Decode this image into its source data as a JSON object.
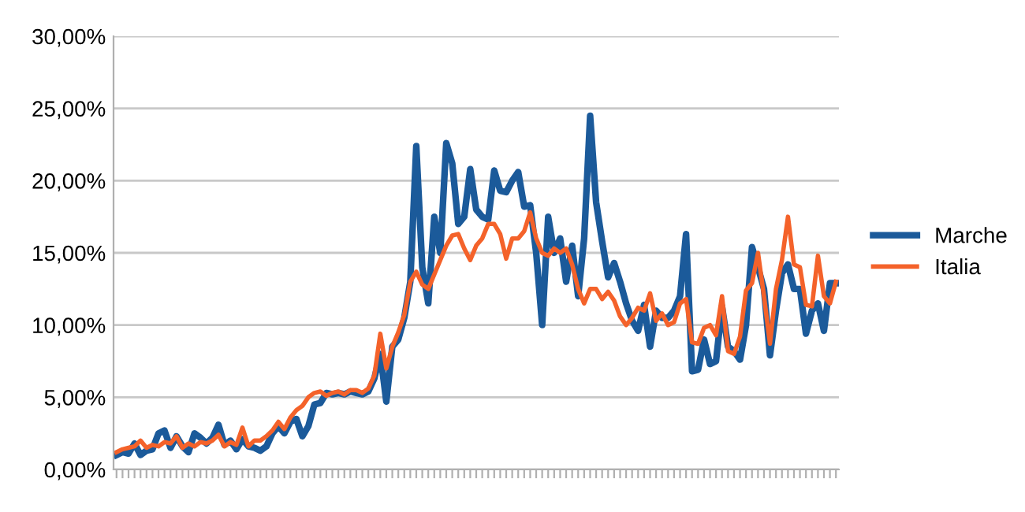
{
  "chart_data": {
    "type": "line",
    "categories": [
      null,
      null,
      null,
      null,
      null,
      null,
      null,
      null,
      null,
      null,
      null,
      null,
      null,
      null,
      null,
      null,
      null,
      null,
      null,
      null,
      null,
      null,
      null,
      null,
      null,
      null,
      null,
      null,
      null,
      null,
      null,
      null,
      null,
      null,
      null,
      null,
      null,
      null,
      null,
      null,
      null,
      null,
      null,
      null,
      null,
      null,
      null,
      null,
      null,
      null,
      null,
      null,
      null,
      null,
      null,
      null,
      null,
      null,
      null,
      null,
      null,
      null,
      null,
      null,
      null,
      null,
      null,
      null,
      null,
      null,
      null,
      null,
      null,
      null,
      null,
      null,
      null,
      null,
      null,
      null,
      null,
      null,
      null,
      null,
      null,
      null,
      null,
      null,
      null,
      null,
      null,
      null,
      null,
      null,
      null,
      null,
      null,
      null,
      null,
      null,
      null,
      null,
      null,
      null,
      null,
      null,
      null,
      null,
      null,
      null,
      null,
      null,
      null,
      null,
      null,
      null,
      null,
      null,
      null,
      null,
      null
    ],
    "series": [
      {
        "name": "Marche",
        "color": "#1b5a9a",
        "values": [
          1.0,
          1.2,
          1.1,
          1.8,
          1.0,
          1.3,
          1.4,
          2.5,
          2.7,
          1.5,
          2.3,
          1.6,
          1.2,
          2.5,
          2.2,
          1.8,
          2.2,
          3.1,
          1.7,
          2.0,
          1.4,
          2.1,
          1.6,
          1.5,
          1.3,
          1.6,
          2.5,
          3.0,
          2.5,
          3.3,
          3.5,
          2.3,
          3.0,
          4.5,
          4.6,
          5.3,
          5.2,
          5.3,
          5.2,
          5.4,
          5.3,
          5.2,
          5.4,
          6.3,
          8.0,
          4.7,
          8.5,
          9.0,
          10.5,
          13.0,
          22.4,
          14.0,
          11.5,
          17.5,
          15.0,
          22.6,
          21.2,
          17.0,
          17.5,
          20.8,
          18.0,
          17.5,
          17.3,
          20.7,
          19.3,
          19.2,
          20.0,
          20.6,
          18.2,
          18.3,
          15.0,
          10.0,
          17.5,
          15.0,
          16.0,
          13.0,
          15.5,
          12.0,
          16.0,
          24.5,
          18.5,
          15.8,
          13.3,
          14.3,
          13.0,
          11.5,
          10.3,
          9.6,
          11.4,
          8.5,
          11.0,
          10.5,
          10.5,
          11.0,
          12.0,
          16.3,
          6.8,
          6.9,
          9.0,
          7.3,
          7.5,
          11.3,
          8.5,
          8.2,
          7.6,
          10.0,
          15.4,
          14.0,
          12.5,
          7.9,
          11.0,
          13.6,
          14.2,
          12.5,
          12.5,
          9.4,
          11.0,
          11.5,
          9.6,
          12.9,
          12.9
        ]
      },
      {
        "name": "Italia",
        "color": "#f4622a",
        "values": [
          1.2,
          1.4,
          1.5,
          1.6,
          2.0,
          1.5,
          1.7,
          1.6,
          1.9,
          1.8,
          2.3,
          1.5,
          1.8,
          1.6,
          1.9,
          1.8,
          2.0,
          2.4,
          1.6,
          1.9,
          1.7,
          2.9,
          1.6,
          2.0,
          2.0,
          2.3,
          2.7,
          3.3,
          2.8,
          3.6,
          4.1,
          4.4,
          5.0,
          5.3,
          5.4,
          5.1,
          5.3,
          5.4,
          5.2,
          5.5,
          5.5,
          5.3,
          5.6,
          6.5,
          9.4,
          7.0,
          8.5,
          9.5,
          10.7,
          13.0,
          13.7,
          12.8,
          12.5,
          13.5,
          14.5,
          15.5,
          16.2,
          16.3,
          15.3,
          14.5,
          15.5,
          16.0,
          17.0,
          17.0,
          16.3,
          14.6,
          16.0,
          16.0,
          16.5,
          17.8,
          16.0,
          15.0,
          14.8,
          15.3,
          15.0,
          15.3,
          14.2,
          12.5,
          11.5,
          12.5,
          12.5,
          11.8,
          12.3,
          11.7,
          10.6,
          10.0,
          10.5,
          11.2,
          11.0,
          12.2,
          10.3,
          10.8,
          10.0,
          10.2,
          11.5,
          11.8,
          8.8,
          8.7,
          9.8,
          10.0,
          9.3,
          12.0,
          8.2,
          8.0,
          9.2,
          12.4,
          12.9,
          15.0,
          12.0,
          8.7,
          12.5,
          14.5,
          17.5,
          14.2,
          14.0,
          11.4,
          11.3,
          14.8,
          12.0,
          11.5,
          13.0
        ]
      }
    ],
    "ylim": [
      0,
      30
    ],
    "yticks": [
      {
        "value": 0,
        "label": "0,00%"
      },
      {
        "value": 5,
        "label": "5,00%"
      },
      {
        "value": 10,
        "label": "10,00%"
      },
      {
        "value": 15,
        "label": "15,00%"
      },
      {
        "value": 20,
        "label": "20,00%"
      },
      {
        "value": 25,
        "label": "25,00%"
      },
      {
        "value": 30,
        "label": "30,00%"
      }
    ],
    "grid": "y",
    "legend": "right",
    "marker": "none",
    "line_style": "solid"
  }
}
